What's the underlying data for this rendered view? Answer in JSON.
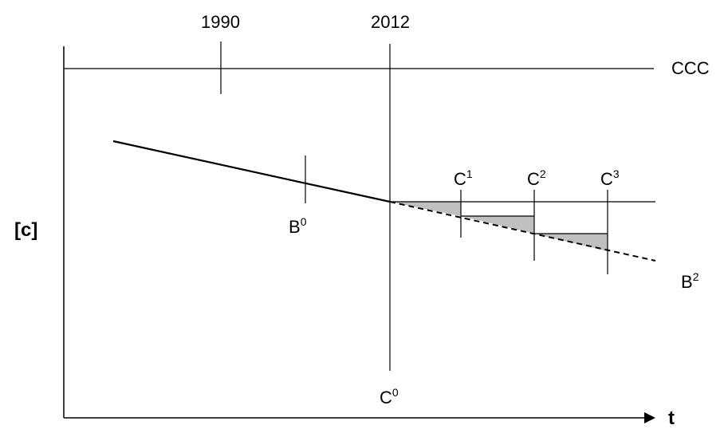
{
  "axes": {
    "y_label": "[c]",
    "x_label": "t"
  },
  "years": {
    "year_1990": "1990",
    "year_2012": "2012"
  },
  "lines": {
    "ccc": "CCC"
  },
  "points": {
    "b0": {
      "base": "B",
      "sup": "0"
    },
    "c0": {
      "base": "C",
      "sup": "0"
    },
    "c1": {
      "base": "C",
      "sup": "1"
    },
    "c2": {
      "base": "C",
      "sup": "2"
    },
    "c3": {
      "base": "C",
      "sup": "3"
    },
    "b2": {
      "base": "B",
      "sup": "2"
    }
  },
  "colors": {
    "line": "#000000",
    "shade": "#c0c0c0",
    "background": "#ffffff"
  }
}
